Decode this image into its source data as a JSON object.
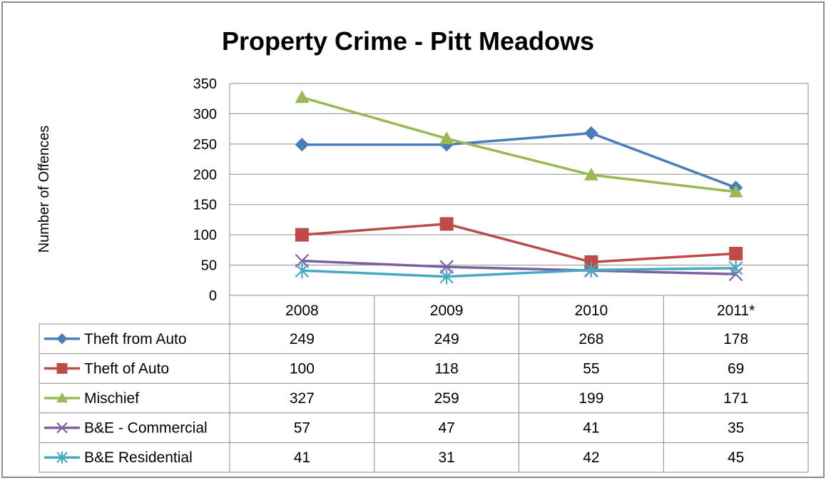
{
  "chart_data": {
    "type": "line",
    "title": "Property Crime - Pitt Meadows",
    "ylabel": "Number of Offences",
    "xlabel": "",
    "categories": [
      "2008",
      "2009",
      "2010",
      "2011*"
    ],
    "ylim": [
      0,
      350
    ],
    "yticks": [
      0,
      50,
      100,
      150,
      200,
      250,
      300,
      350
    ],
    "grid": true,
    "legend": "data-table-left",
    "series": [
      {
        "name": "Theft from Auto",
        "values": [
          249,
          249,
          268,
          178
        ],
        "color": "#4a7ebb",
        "marker": "diamond"
      },
      {
        "name": "Theft of Auto",
        "values": [
          100,
          118,
          55,
          69
        ],
        "color": "#be4b48",
        "marker": "square"
      },
      {
        "name": "Mischief",
        "values": [
          327,
          259,
          199,
          171
        ],
        "color": "#98b954",
        "marker": "triangle"
      },
      {
        "name": "B&E - Commercial",
        "values": [
          57,
          47,
          41,
          35
        ],
        "color": "#7d60a0",
        "marker": "x"
      },
      {
        "name": "B&E Residential",
        "values": [
          41,
          31,
          42,
          45
        ],
        "color": "#46aac5",
        "marker": "star"
      }
    ]
  }
}
